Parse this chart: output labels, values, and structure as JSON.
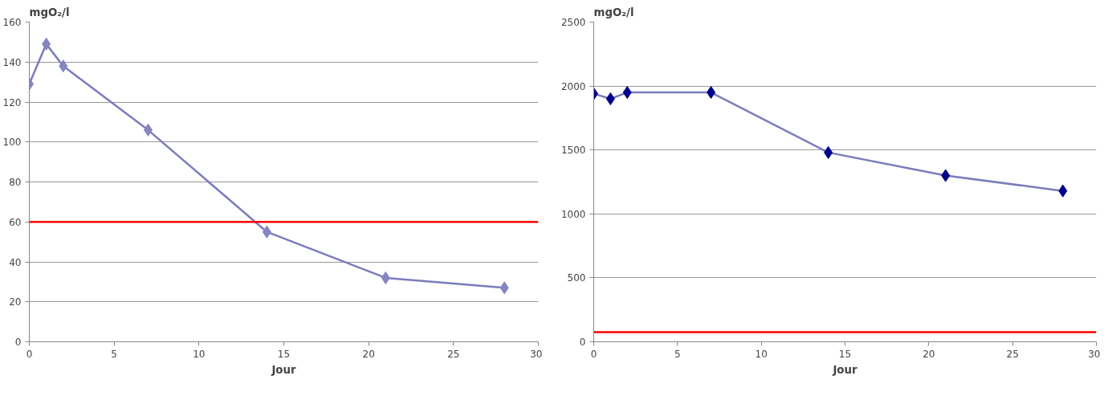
{
  "chart_data": [
    {
      "type": "line",
      "ylabel": "mgO₂/l",
      "xlabel": "Jour",
      "x": [
        0,
        1,
        2,
        7,
        14,
        21,
        28
      ],
      "series": [
        {
          "color": "#7b7bbd",
          "values": [
            129,
            149,
            138,
            106,
            55,
            32,
            27
          ],
          "marker": "diamond",
          "colors": [
            "#8585c2",
            "#8585c2",
            "#8585c2",
            "#8585c2",
            "#8585c2",
            "#8585c2",
            "#8585c2"
          ]
        }
      ],
      "ref_lines": [
        {
          "axis": "y",
          "value": 60,
          "color": "#ff0000"
        }
      ],
      "xlim": [
        0,
        30
      ],
      "xticks": [
        0,
        5,
        10,
        15,
        20,
        25,
        30
      ],
      "ylim": [
        0,
        160
      ],
      "yticks": [
        0,
        20,
        40,
        60,
        80,
        100,
        120,
        140,
        160
      ],
      "grid": "y"
    },
    {
      "type": "line",
      "ylabel": "mgO₂/l",
      "xlabel": "Jour",
      "x": [
        0,
        1,
        2,
        7,
        14,
        21,
        28
      ],
      "series": [
        {
          "color": "#7b7bbd",
          "values": [
            1940,
            1900,
            1950,
            1950,
            1480,
            1300,
            1180
          ],
          "marker": "diamond",
          "colors": [
            "#00008b",
            "#00008b",
            "#00008b",
            "#00008b",
            "#00008b",
            "#00008b",
            "#00008b"
          ]
        }
      ],
      "ref_lines": [
        {
          "axis": "y",
          "value": 75,
          "color": "#ff0000"
        }
      ],
      "xlim": [
        0,
        30
      ],
      "xticks": [
        0,
        5,
        10,
        15,
        20,
        25,
        30
      ],
      "ylim": [
        0,
        2500
      ],
      "yticks": [
        0,
        500,
        1000,
        1500,
        2000,
        2500
      ],
      "grid": "y"
    }
  ]
}
